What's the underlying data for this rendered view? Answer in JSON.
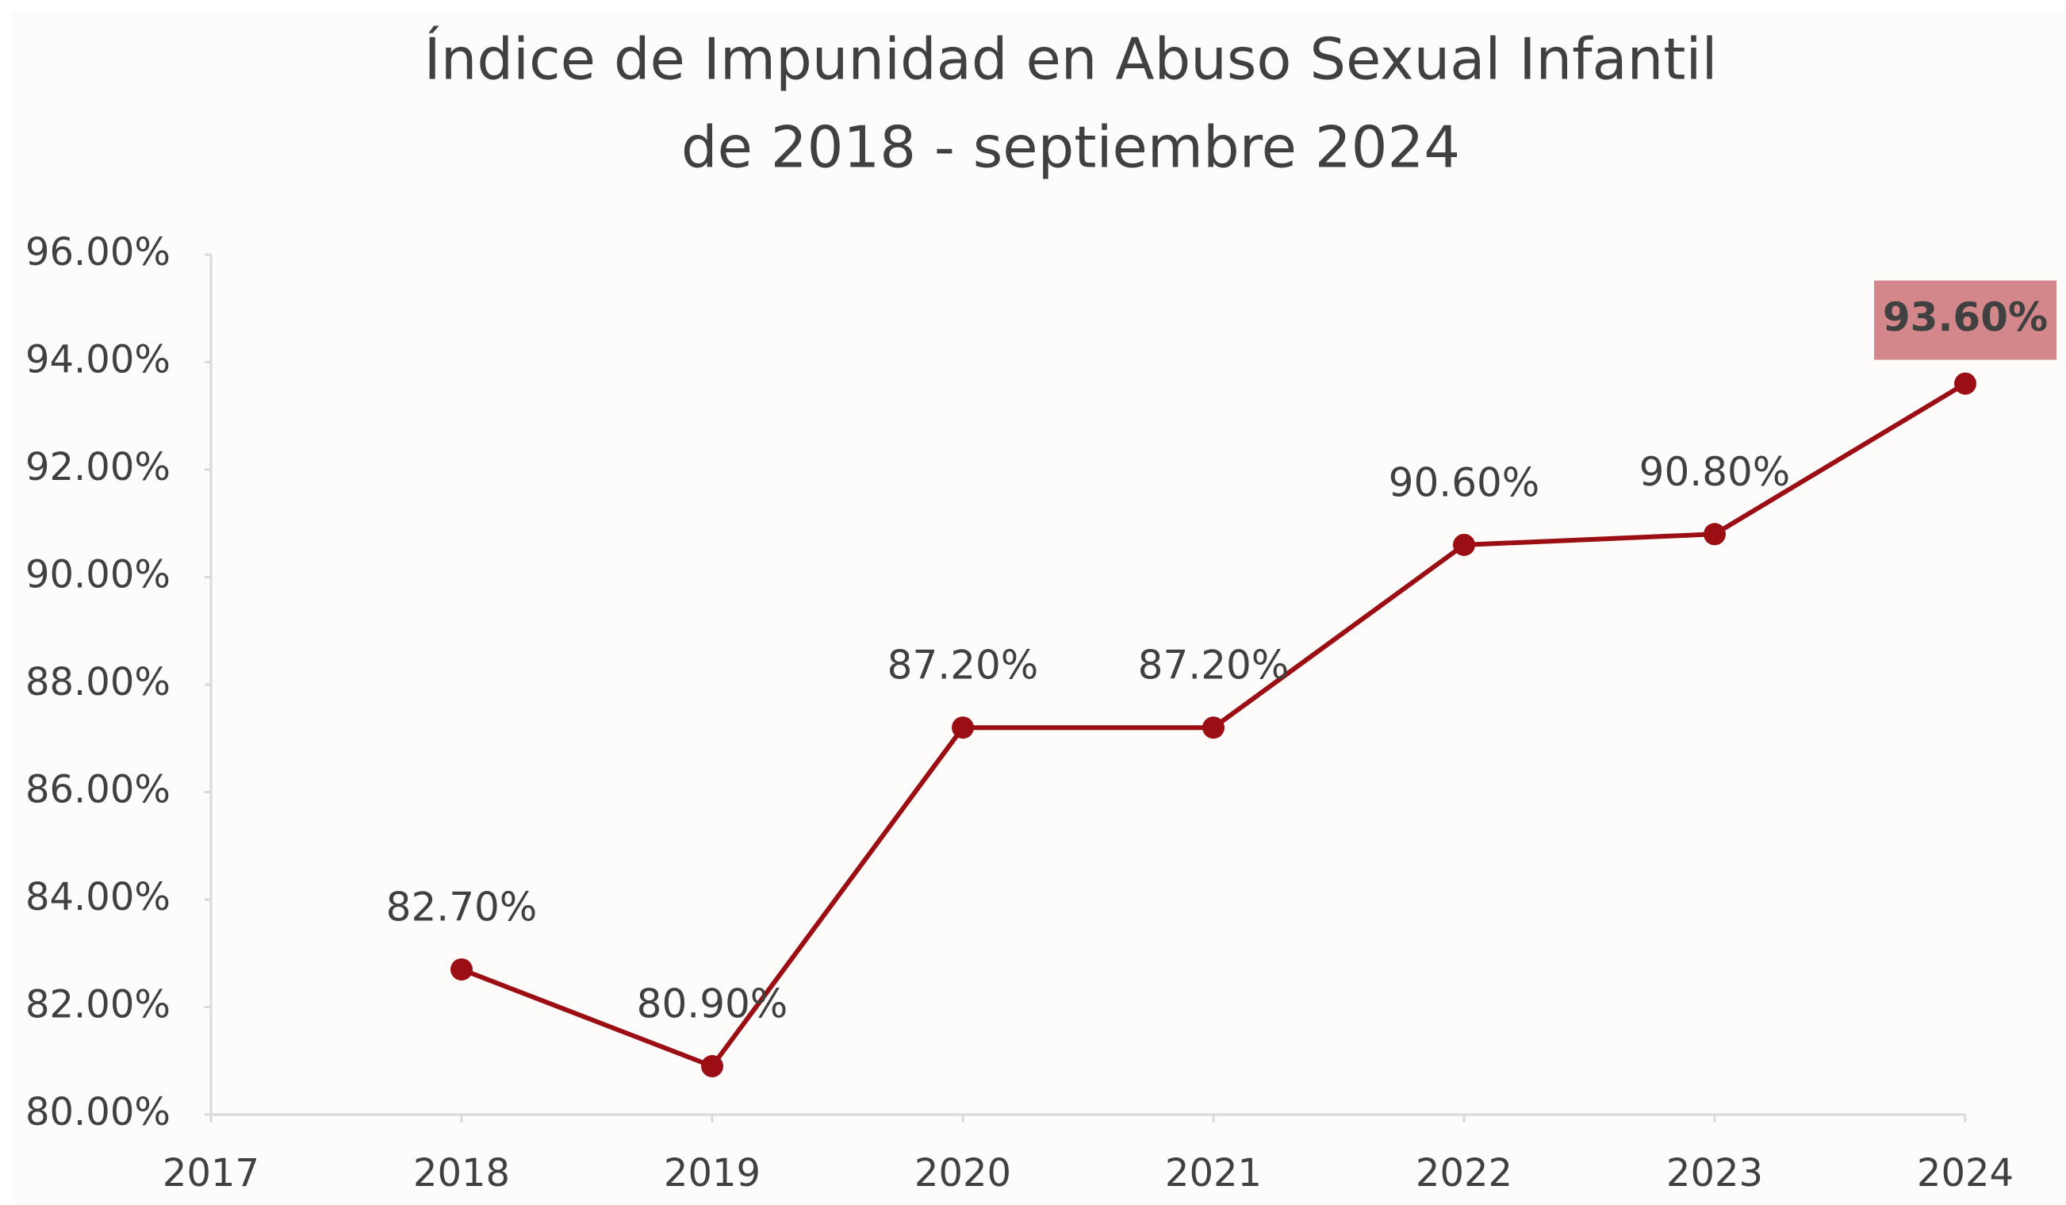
{
  "chart_data": {
    "type": "line",
    "title": [
      "Índice de Impunidad en Abuso Sexual Infantil",
      "de 2018 - septiembre 2024"
    ],
    "x": [
      2018,
      2019,
      2020,
      2021,
      2022,
      2023,
      2024
    ],
    "series": [
      {
        "color": "#9b0f14",
        "values": [
          82.7,
          80.9,
          87.2,
          87.2,
          90.6,
          90.8,
          93.6
        ],
        "value_labels": [
          "82.70%",
          "80.90%",
          "87.20%",
          "87.20%",
          "90.60%",
          "90.80%",
          "93.60%"
        ]
      }
    ],
    "highlight_index": 6,
    "xlim": [
      2017,
      2024
    ],
    "xticks": [
      2017,
      2018,
      2019,
      2020,
      2021,
      2022,
      2023,
      2024
    ],
    "ylim": [
      80,
      96
    ],
    "yticks": [
      {
        "value": 80,
        "label": "80.00%"
      },
      {
        "value": 82,
        "label": "82.00%"
      },
      {
        "value": 84,
        "label": "84.00%"
      },
      {
        "value": 86,
        "label": "86.00%"
      },
      {
        "value": 88,
        "label": "88.00%"
      },
      {
        "value": 90,
        "label": "90.00%"
      },
      {
        "value": 92,
        "label": "92.00%"
      },
      {
        "value": 94,
        "label": "94.00%"
      },
      {
        "value": 96,
        "label": "96.00%"
      }
    ],
    "grid": false
  }
}
